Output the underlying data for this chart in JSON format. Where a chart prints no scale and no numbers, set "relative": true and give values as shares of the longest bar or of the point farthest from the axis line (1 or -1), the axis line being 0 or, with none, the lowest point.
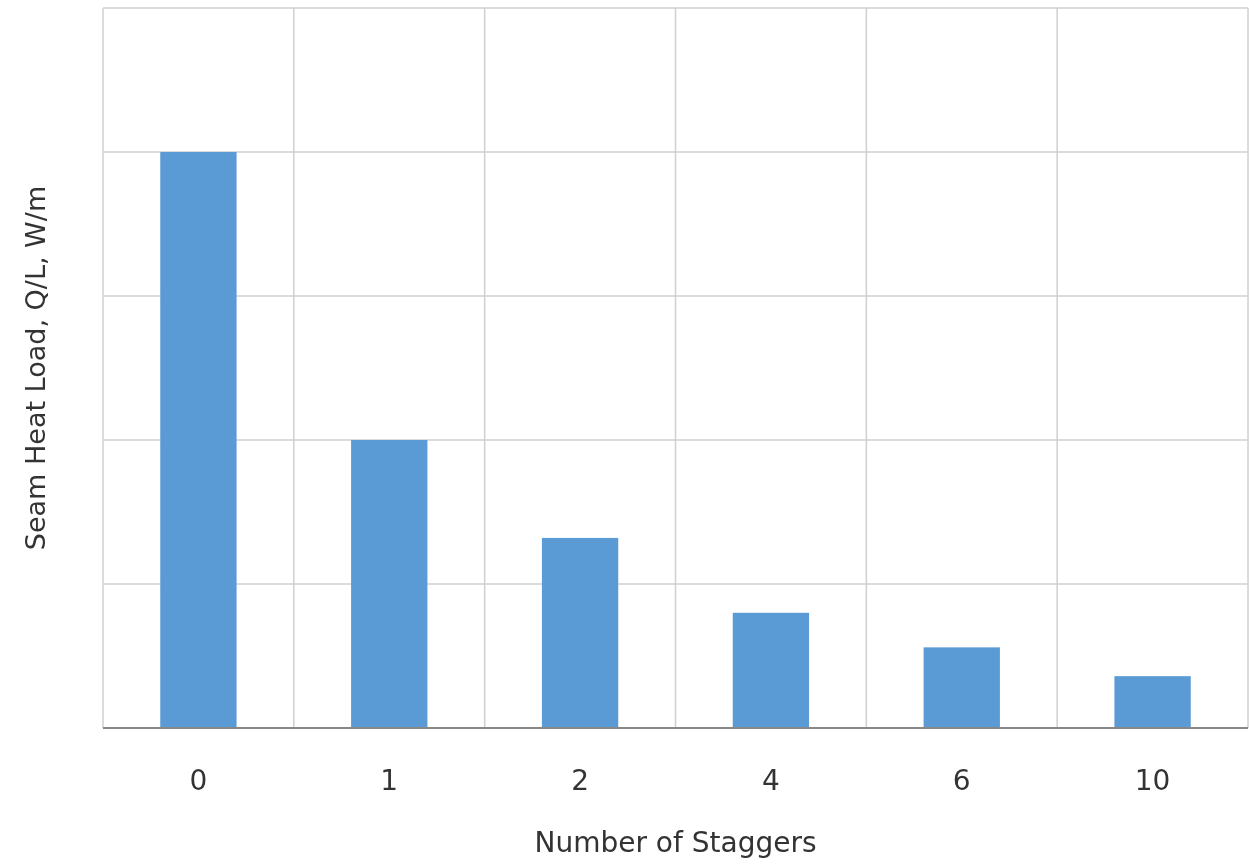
{
  "chart_data": {
    "type": "bar",
    "xlabel": "Number of Staggers",
    "ylabel": "Seam Heat Load, Q/L, W/m",
    "categories": [
      "0",
      "1",
      "2",
      "4",
      "6",
      "10"
    ],
    "values": [
      1,
      0.5,
      0.33,
      0.2,
      0.14,
      0.09
    ],
    "color": "#5b9bd5",
    "relative": true,
    "grid": true
  }
}
